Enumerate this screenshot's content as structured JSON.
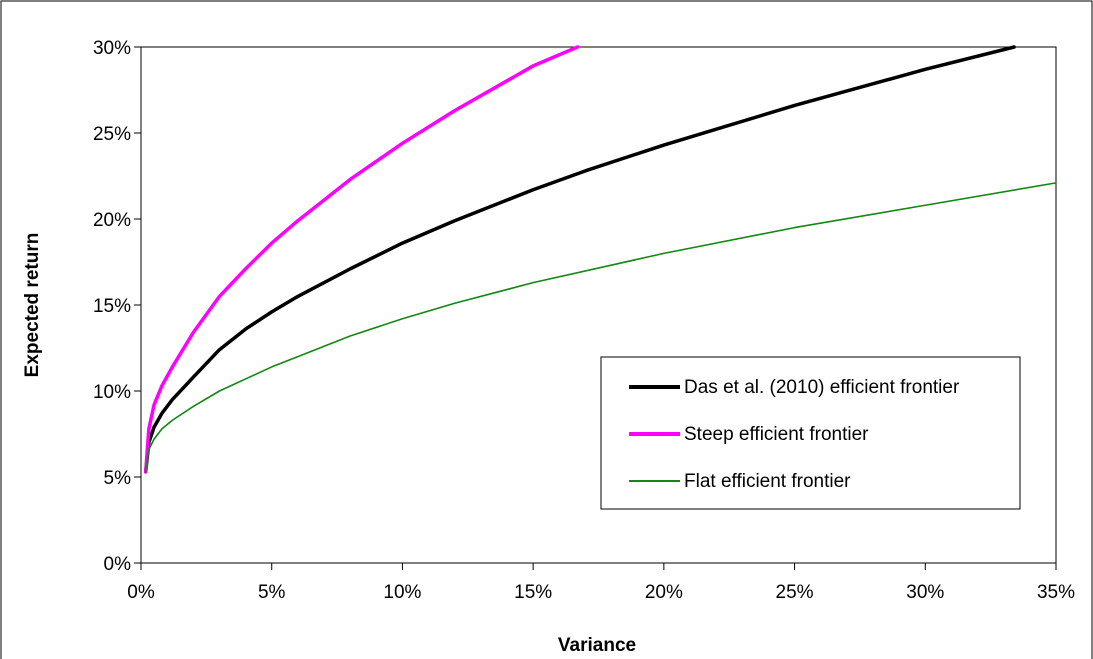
{
  "chart_data": {
    "type": "line",
    "title": "",
    "xlabel": "Variance",
    "ylabel": "Expected return",
    "xlim": [
      0,
      0.35
    ],
    "ylim": [
      0,
      0.3
    ],
    "x_ticks": [
      0,
      0.05,
      0.1,
      0.15,
      0.2,
      0.25,
      0.3,
      0.35
    ],
    "x_tick_labels": [
      "0%",
      "5%",
      "10%",
      "15%",
      "20%",
      "25%",
      "30%",
      "35%"
    ],
    "y_ticks": [
      0,
      0.05,
      0.1,
      0.15,
      0.2,
      0.25,
      0.3
    ],
    "y_tick_labels": [
      "0%",
      "5%",
      "10%",
      "15%",
      "20%",
      "25%",
      "30%"
    ],
    "grid": false,
    "legend_position": "lower-right",
    "series": [
      {
        "name": "Das et al. (2010) efficient frontier",
        "color": "#000000",
        "x": [
          0.0018,
          0.003,
          0.005,
          0.008,
          0.012,
          0.02,
          0.03,
          0.04,
          0.05,
          0.06,
          0.08,
          0.1,
          0.12,
          0.15,
          0.17,
          0.2,
          0.25,
          0.3,
          0.334
        ],
        "y": [
          0.053,
          0.07,
          0.079,
          0.087,
          0.095,
          0.108,
          0.124,
          0.136,
          0.146,
          0.155,
          0.171,
          0.186,
          0.199,
          0.217,
          0.228,
          0.243,
          0.266,
          0.287,
          0.3
        ]
      },
      {
        "name": "Steep efficient frontier",
        "color": "#ff00ff",
        "x": [
          0.0018,
          0.003,
          0.005,
          0.008,
          0.012,
          0.02,
          0.03,
          0.04,
          0.05,
          0.06,
          0.08,
          0.1,
          0.12,
          0.15,
          0.167
        ],
        "y": [
          0.053,
          0.078,
          0.092,
          0.103,
          0.114,
          0.134,
          0.155,
          0.171,
          0.186,
          0.199,
          0.223,
          0.244,
          0.263,
          0.289,
          0.3
        ]
      },
      {
        "name": "Flat efficient frontier",
        "color": "#118811",
        "x": [
          0.0018,
          0.003,
          0.005,
          0.008,
          0.012,
          0.02,
          0.03,
          0.04,
          0.05,
          0.06,
          0.08,
          0.1,
          0.12,
          0.15,
          0.2,
          0.25,
          0.3,
          0.35
        ],
        "y": [
          0.053,
          0.066,
          0.072,
          0.078,
          0.083,
          0.091,
          0.1,
          0.107,
          0.114,
          0.12,
          0.132,
          0.142,
          0.151,
          0.163,
          0.18,
          0.195,
          0.208,
          0.221
        ]
      }
    ]
  }
}
